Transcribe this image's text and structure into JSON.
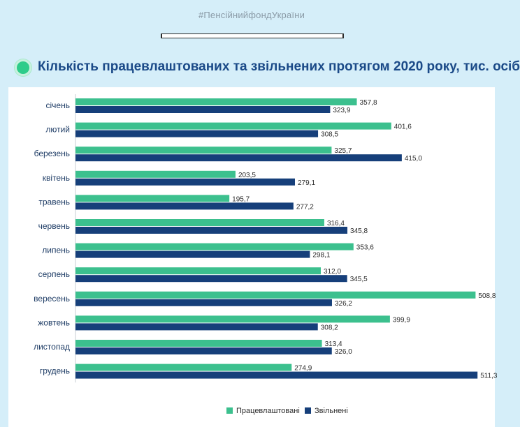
{
  "header": {
    "hashtag": "#ПенсійнийфондУкраїни",
    "title": "Кількість працевлаштованих та звільнених протягом 2020 року, тис. осіб"
  },
  "colors": {
    "employed": "#3cc08e",
    "dismissed": "#163f7a",
    "accent_dot": "#2ecc8a",
    "title": "#1b4a88"
  },
  "chart_data": {
    "type": "bar",
    "orientation": "horizontal",
    "title": "Кількість працевлаштованих та звільнених протягом 2020 року, тис. осіб",
    "categories": [
      "січень",
      "лютий",
      "березень",
      "квітень",
      "травень",
      "червень",
      "липень",
      "серпень",
      "вересень",
      "жовтень",
      "листопад",
      "грудень"
    ],
    "series": [
      {
        "name": "Працевлаштовані",
        "color": "#3cc08e",
        "values": [
          357.8,
          401.6,
          325.7,
          203.5,
          195.7,
          316.4,
          353.6,
          312.0,
          508.8,
          399.9,
          313.4,
          274.9
        ],
        "labels": [
          "357,8",
          "401,6",
          "325,7",
          "203,5",
          "195,7",
          "316,4",
          "353,6",
          "312,0",
          "508,8",
          "399,9",
          "313,4",
          "274,9"
        ]
      },
      {
        "name": "Звільнені",
        "color": "#163f7a",
        "values": [
          323.9,
          308.5,
          415.0,
          279.1,
          277.2,
          345.8,
          298.1,
          345.5,
          326.2,
          308.2,
          326.0,
          511.3
        ],
        "labels": [
          "323,9",
          "308,5",
          "415,0",
          "279,1",
          "277,2",
          "345,8",
          "298,1",
          "345,5",
          "326,2",
          "308,2",
          "326,0",
          "511,3"
        ]
      }
    ],
    "xlim": [
      0,
      520
    ],
    "grid": false,
    "legend_position": "bottom-right"
  }
}
